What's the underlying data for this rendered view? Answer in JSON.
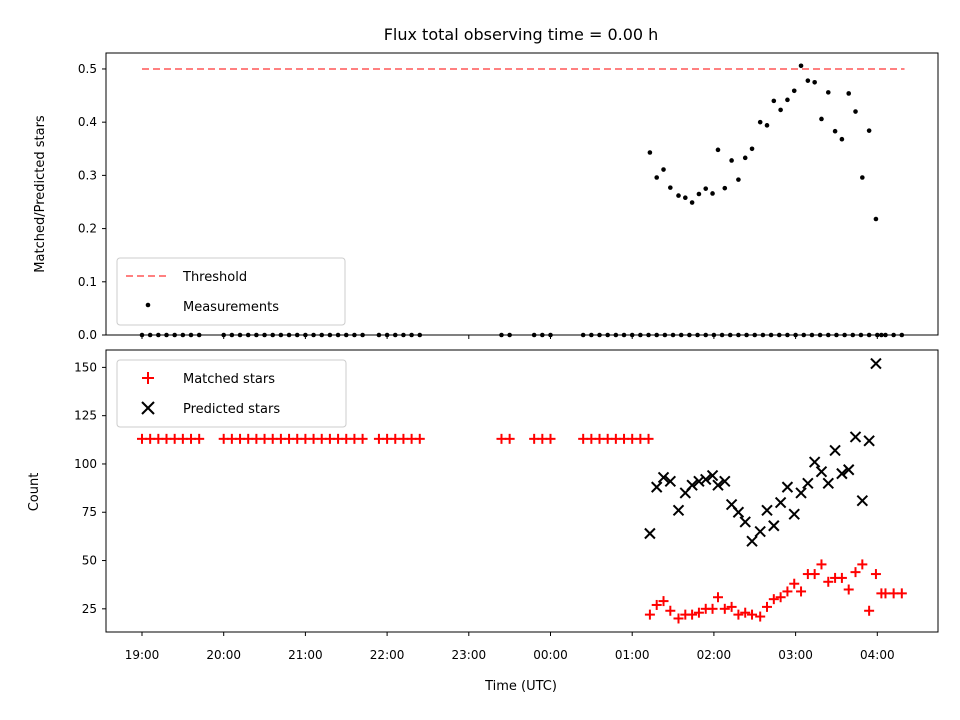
{
  "chart_data": [
    {
      "type": "scatter",
      "title": "Flux total observing time = 0.00 h",
      "xlabel": "",
      "ylabel": "Matched/Predicted stars",
      "ylim": [
        0,
        0.53
      ],
      "yticks": [
        "0.0",
        "0.1",
        "0.2",
        "0.3",
        "0.4",
        "0.5"
      ],
      "legend_placement": "lower-left",
      "grid": false,
      "threshold": {
        "name": "Threshold",
        "value": 0.5,
        "x_range": [
          "19:00",
          "04:20"
        ],
        "color": "#ff8080"
      },
      "series": [
        {
          "name": "Measurements",
          "color": "#000000",
          "x": [
            "19:00",
            "19:06",
            "19:12",
            "19:18",
            "19:24",
            "19:30",
            "19:36",
            "19:42",
            "20:00",
            "20:06",
            "20:12",
            "20:18",
            "20:24",
            "20:30",
            "20:36",
            "20:42",
            "20:48",
            "20:54",
            "21:00",
            "21:06",
            "21:12",
            "21:18",
            "21:24",
            "21:30",
            "21:36",
            "21:42",
            "21:54",
            "22:00",
            "22:06",
            "22:12",
            "22:18",
            "22:24",
            "23:24",
            "23:30",
            "23:48",
            "23:54",
            "24:00",
            "24:24",
            "24:30",
            "24:36",
            "24:42",
            "24:48",
            "24:54",
            "25:00",
            "25:06",
            "25:12",
            "25:18",
            "25:24",
            "25:30",
            "25:36",
            "25:42",
            "25:48",
            "25:54",
            "26:00",
            "26:06",
            "26:12",
            "26:18",
            "26:24",
            "26:30",
            "26:36",
            "26:42",
            "26:48",
            "26:54",
            "27:00",
            "27:06",
            "27:12",
            "27:18",
            "27:24",
            "27:30",
            "27:36",
            "27:42",
            "27:48",
            "27:54",
            "28:00",
            "28:06",
            "28:12",
            "28:18"
          ],
          "y": [
            0,
            0,
            0,
            0,
            0,
            0,
            0,
            0,
            0,
            0,
            0,
            0,
            0,
            0,
            0,
            0,
            0,
            0,
            0,
            0,
            0,
            0,
            0,
            0,
            0,
            0,
            0,
            0,
            0,
            0,
            0,
            0,
            0,
            0,
            0,
            0,
            0,
            0,
            0,
            0,
            0,
            0,
            0,
            0,
            0,
            0,
            0,
            0,
            0,
            0,
            0,
            0,
            0,
            0,
            0,
            0,
            0,
            0,
            0,
            0,
            0,
            0,
            0,
            0,
            0,
            0,
            0,
            0,
            0,
            0,
            0,
            0,
            0,
            0,
            0,
            0,
            0
          ],
          "x_active": [
            "25:13",
            "25:18",
            "25:23",
            "25:28",
            "25:34",
            "25:39",
            "25:44",
            "25:49",
            "25:54",
            "25:59",
            "26:03",
            "26:08",
            "26:13",
            "26:18",
            "26:23",
            "26:28",
            "26:34",
            "26:39",
            "26:44",
            "26:49",
            "26:54",
            "26:59",
            "27:04",
            "27:09",
            "27:14",
            "27:19",
            "27:24",
            "27:29",
            "27:34",
            "27:39",
            "27:44",
            "27:49",
            "27:54",
            "27:59",
            "28:03"
          ],
          "y_active": [
            0.343,
            0.296,
            0.311,
            0.277,
            0.262,
            0.258,
            0.249,
            0.265,
            0.275,
            0.266,
            0.348,
            0.276,
            0.328,
            0.292,
            0.333,
            0.35,
            0.4,
            0.394,
            0.44,
            0.423,
            0.442,
            0.459,
            0.506,
            0.478,
            0.475,
            0.406,
            0.456,
            0.383,
            0.368,
            0.454,
            0.42,
            0.296,
            0.384,
            0.218,
            0.0
          ]
        }
      ]
    },
    {
      "type": "scatter",
      "title": "",
      "xlabel": "Time (UTC)",
      "ylabel": "Count",
      "ylim": [
        13,
        159
      ],
      "yticks": [
        "25",
        "50",
        "75",
        "100",
        "125",
        "150"
      ],
      "xticks": [
        "19:00",
        "20:00",
        "21:00",
        "22:00",
        "23:00",
        "00:00",
        "01:00",
        "02:00",
        "03:00",
        "04:00"
      ],
      "legend_placement": "upper-left",
      "grid": false,
      "series": [
        {
          "name": "Matched stars",
          "marker": "plus",
          "color": "#ff0000",
          "x": [
            "19:00",
            "19:06",
            "19:12",
            "19:18",
            "19:24",
            "19:30",
            "19:36",
            "19:42",
            "20:00",
            "20:06",
            "20:12",
            "20:18",
            "20:24",
            "20:30",
            "20:36",
            "20:42",
            "20:48",
            "20:54",
            "21:00",
            "21:06",
            "21:12",
            "21:18",
            "21:24",
            "21:30",
            "21:36",
            "21:42",
            "21:54",
            "22:00",
            "22:06",
            "22:12",
            "22:18",
            "22:24",
            "23:24",
            "23:30",
            "23:48",
            "23:54",
            "24:00",
            "24:24",
            "24:30",
            "24:36",
            "24:42",
            "24:48",
            "24:54",
            "25:00",
            "25:06",
            "25:12",
            "25:13",
            "25:18",
            "25:23",
            "25:28",
            "25:34",
            "25:39",
            "25:44",
            "25:49",
            "25:54",
            "25:59",
            "26:03",
            "26:08",
            "26:13",
            "26:18",
            "26:23",
            "26:28",
            "26:34",
            "26:39",
            "26:44",
            "26:49",
            "26:54",
            "26:59",
            "27:04",
            "27:09",
            "27:14",
            "27:19",
            "27:24",
            "27:29",
            "27:34",
            "27:39",
            "27:44",
            "27:49",
            "27:54",
            "27:59",
            "28:03",
            "28:06",
            "28:12",
            "28:18"
          ],
          "y": [
            113,
            113,
            113,
            113,
            113,
            113,
            113,
            113,
            113,
            113,
            113,
            113,
            113,
            113,
            113,
            113,
            113,
            113,
            113,
            113,
            113,
            113,
            113,
            113,
            113,
            113,
            113,
            113,
            113,
            113,
            113,
            113,
            113,
            113,
            113,
            113,
            113,
            113,
            113,
            113,
            113,
            113,
            113,
            113,
            113,
            113,
            22,
            27,
            29,
            24,
            20,
            22,
            22,
            23,
            25,
            25,
            31,
            25,
            26,
            22,
            23,
            22,
            21,
            26,
            30,
            31,
            34,
            38,
            34,
            43,
            43,
            48,
            39,
            41,
            41,
            35,
            44,
            48,
            24,
            43,
            33,
            33,
            33,
            33
          ]
        },
        {
          "name": "Predicted stars",
          "marker": "x",
          "color": "#000000",
          "x": [
            "25:13",
            "25:18",
            "25:23",
            "25:28",
            "25:34",
            "25:39",
            "25:44",
            "25:49",
            "25:54",
            "25:59",
            "26:03",
            "26:08",
            "26:13",
            "26:18",
            "26:23",
            "26:28",
            "26:34",
            "26:39",
            "26:44",
            "26:49",
            "26:54",
            "26:59",
            "27:04",
            "27:09",
            "27:14",
            "27:19",
            "27:24",
            "27:29",
            "27:34",
            "27:39",
            "27:44",
            "27:49",
            "27:54",
            "27:59",
            "28:01"
          ],
          "y": [
            64,
            88,
            93,
            91,
            76,
            85,
            89,
            91,
            92,
            94,
            89,
            91,
            79,
            75,
            70,
            60,
            65,
            76,
            68,
            80,
            88,
            74,
            85,
            90,
            101,
            96,
            90,
            107,
            95,
            97,
            114,
            81,
            112,
            152,
            152
          ]
        }
      ]
    }
  ]
}
